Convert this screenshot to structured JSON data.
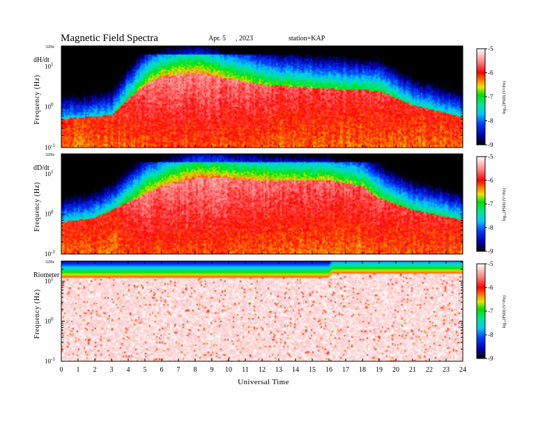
{
  "header": {
    "title": "Magnetic  Field  Spectra",
    "date_month": "Apr. 5",
    "date_year": ", 2023",
    "station": "station=KAP"
  },
  "chart_data": [
    {
      "type": "heatmap",
      "panel_label": "dH/dt",
      "ylabel": "Frequency  (Hz)",
      "y_top_label": "32Hz",
      "y_ticks": [
        {
          "base": "10",
          "exp": "1",
          "decade": 1
        },
        {
          "base": "10",
          "exp": "0",
          "decade": 0
        },
        {
          "base": "10",
          "exp": "-1",
          "decade": -1
        }
      ],
      "y_range_log10": [
        -1,
        1.505
      ],
      "x_range_hours": [
        0,
        24
      ],
      "spectral_profile": {
        "noise_floor": {
          "hours": [
            0,
            3,
            5,
            8,
            10,
            13,
            16,
            19,
            21,
            24
          ],
          "log_psd": [
            -7.6,
            -7.5,
            -6.6,
            -6.3,
            -6.5,
            -6.8,
            -6.9,
            -7.0,
            -7.3,
            -7.5
          ]
        },
        "knee_log10_hz": {
          "hours": [
            0,
            3,
            4,
            5,
            6,
            8,
            10,
            12,
            16,
            19,
            21,
            24
          ],
          "values": [
            -0.3,
            -0.2,
            0.2,
            0.55,
            0.75,
            0.85,
            0.7,
            0.55,
            0.45,
            0.4,
            0.05,
            -0.25
          ]
        }
      },
      "colorbar": {
        "label": "log₁₀(PSD) (V²/Hz)",
        "range": [
          -9,
          -5
        ],
        "ticks": [
          "-5",
          "-6",
          "-7",
          "-8",
          "-9"
        ]
      }
    },
    {
      "type": "heatmap",
      "panel_label": "dD/dt",
      "ylabel": "Frequency  (Hz)",
      "y_top_label": "32Hz",
      "y_ticks": [
        {
          "base": "10",
          "exp": "1",
          "decade": 1
        },
        {
          "base": "10",
          "exp": "0",
          "decade": 0
        },
        {
          "base": "10",
          "exp": "-1",
          "decade": -1
        }
      ],
      "y_range_log10": [
        -1,
        1.505
      ],
      "x_range_hours": [
        0,
        24
      ],
      "spectral_profile": {
        "noise_floor": {
          "hours": [
            0,
            3,
            5,
            8,
            10,
            13,
            16,
            19,
            21,
            24
          ],
          "log_psd": [
            -7.5,
            -7.3,
            -6.5,
            -6.2,
            -6.4,
            -6.5,
            -6.6,
            -6.8,
            -7.1,
            -7.3
          ]
        },
        "knee_log10_hz": {
          "hours": [
            0,
            2,
            4,
            6,
            8,
            10,
            12,
            16,
            18,
            19,
            21,
            24
          ],
          "values": [
            -0.2,
            -0.1,
            0.3,
            0.7,
            0.9,
            0.9,
            0.85,
            0.85,
            0.7,
            0.4,
            0.1,
            -0.15
          ]
        }
      },
      "colorbar": {
        "label": "log₁₀(PSD) (V²/Hz)",
        "range": [
          -9,
          -5
        ],
        "ticks": [
          "-5",
          "-6",
          "-7",
          "-8",
          "-9"
        ]
      }
    },
    {
      "type": "heatmap",
      "panel_label": "Riometer",
      "ylabel": "Frequency  (Hz)",
      "y_top_label": "32Hz",
      "y_ticks": [
        {
          "base": "10",
          "exp": "1",
          "decade": 1
        },
        {
          "base": "10",
          "exp": "0",
          "decade": 0
        },
        {
          "base": "10",
          "exp": "-1",
          "decade": -1
        }
      ],
      "y_range_log10": [
        -1,
        1.505
      ],
      "x_range_hours": [
        0,
        24
      ],
      "spectral_profile": {
        "noise_floor": {
          "hours": [
            0,
            16,
            24
          ],
          "log_psd": [
            -8.5,
            -8.5,
            -8.5
          ]
        },
        "knee_log10_hz": {
          "hours": [
            0,
            14,
            15,
            16,
            16.2,
            17,
            24
          ],
          "values": [
            1.1,
            1.1,
            1.1,
            1.1,
            1.2,
            1.2,
            1.2
          ]
        }
      },
      "colorbar": {
        "label": "log₁₀(PSD) (V²/Hz)",
        "range": [
          -9,
          -5
        ],
        "ticks": [
          "-5",
          "-6",
          "-7",
          "-8",
          "-9"
        ]
      }
    }
  ],
  "x_axis": {
    "label": "Universal Time",
    "ticks": [
      "0",
      "1",
      "2",
      "3",
      "4",
      "5",
      "6",
      "7",
      "8",
      "9",
      "10",
      "11",
      "12",
      "13",
      "14",
      "15",
      "16",
      "17",
      "18",
      "19",
      "20",
      "21",
      "22",
      "23",
      "24"
    ]
  }
}
